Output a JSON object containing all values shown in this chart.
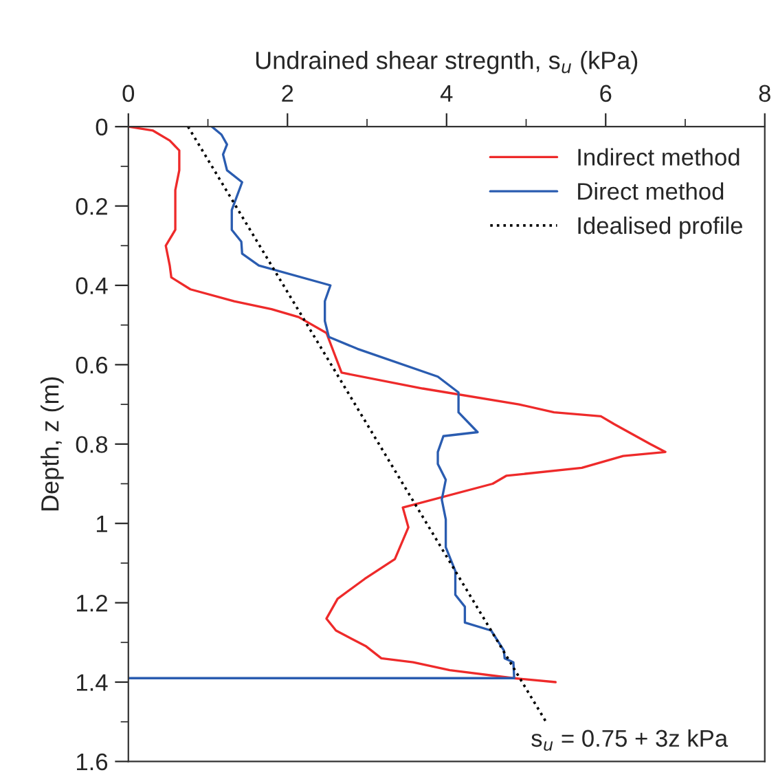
{
  "chart_data": {
    "type": "line",
    "xlabel": "Undrained shear stregnth, s$_{u}$ (kPa)",
    "ylabel": "Depth, z (m)",
    "xlim": [
      0,
      8
    ],
    "xticks": [
      0,
      {
        "value": 1,
        "label": null
      },
      2,
      {
        "value": 3,
        "label": null
      },
      4,
      {
        "value": 5,
        "label": null
      },
      6,
      {
        "value": 7,
        "label": null
      },
      8
    ],
    "ylim": [
      1.6,
      0
    ],
    "yticks": [
      0,
      {
        "value": 0.1,
        "label": null
      },
      0.2,
      {
        "value": 0.3,
        "label": null
      },
      0.4,
      {
        "value": 0.5,
        "label": null
      },
      0.6,
      {
        "value": 0.7,
        "label": null
      },
      0.8,
      {
        "value": 0.9,
        "label": null
      },
      1,
      {
        "value": 1.1,
        "label": null
      },
      1.2,
      {
        "value": 1.3,
        "label": null
      },
      1.4,
      {
        "value": 1.5,
        "label": null
      },
      1.6
    ],
    "legend": "top right",
    "grid": false,
    "marker": "none",
    "series": [
      {
        "name": "Indirect method",
        "color": "#ee2a2a",
        "line_style": "solid",
        "x": [
          0,
          0.31,
          0.52,
          0.64,
          0.64,
          0.59,
          0.59,
          0.47,
          0.52,
          0.54,
          0.78,
          1.33,
          1.8,
          2.14,
          2.49,
          2.68,
          3.7,
          4.91,
          5.35,
          5.94,
          6.11,
          6.56,
          6.75,
          6.22,
          5.7,
          4.75,
          4.58,
          3.45,
          3.52,
          3.35,
          2.97,
          2.63,
          2.49,
          2.61,
          2.99,
          3.18,
          3.58,
          4.04,
          4.84,
          5.37
        ],
        "values": [
          0,
          0.01,
          0.035,
          0.06,
          0.11,
          0.16,
          0.26,
          0.3,
          0.35,
          0.38,
          0.41,
          0.44,
          0.46,
          0.48,
          0.52,
          0.62,
          0.66,
          0.7,
          0.72,
          0.73,
          0.75,
          0.8,
          0.82,
          0.83,
          0.86,
          0.88,
          0.9,
          0.96,
          1.01,
          1.09,
          1.14,
          1.19,
          1.24,
          1.27,
          1.31,
          1.34,
          1.35,
          1.37,
          1.39,
          1.4
        ]
      },
      {
        "name": "Direct method",
        "color": "#2a5cb0",
        "line_style": "solid",
        "x": [
          1.05,
          1.17,
          1.24,
          1.19,
          1.24,
          1.43,
          1.3,
          1.3,
          1.42,
          1.43,
          1.64,
          2.54,
          2.47,
          2.47,
          2.52,
          2.88,
          3.89,
          4.15,
          4.15,
          4.39,
          3.96,
          3.89,
          3.89,
          3.99,
          3.94,
          3.99,
          3.99,
          4.11,
          4.11,
          4.23,
          4.23,
          4.56,
          4.72,
          4.73,
          4.84,
          4.85,
          0
        ],
        "values": [
          0,
          0.02,
          0.045,
          0.07,
          0.11,
          0.14,
          0.21,
          0.26,
          0.29,
          0.32,
          0.35,
          0.4,
          0.44,
          0.49,
          0.53,
          0.56,
          0.63,
          0.67,
          0.72,
          0.77,
          0.78,
          0.82,
          0.85,
          0.89,
          0.94,
          0.99,
          1.06,
          1.12,
          1.18,
          1.21,
          1.25,
          1.27,
          1.32,
          1.34,
          1.35,
          1.39,
          1.39
        ]
      },
      {
        "name": "Idealised profile",
        "color": "#000000",
        "line_style": "dotted",
        "x": [
          0.75,
          5.25
        ],
        "values": [
          0,
          1.5
        ]
      }
    ],
    "annotations": [
      {
        "text": "s$_{u}$ = 0.75 + 3z kPa",
        "x": 5.25,
        "y": 1.5
      }
    ]
  }
}
